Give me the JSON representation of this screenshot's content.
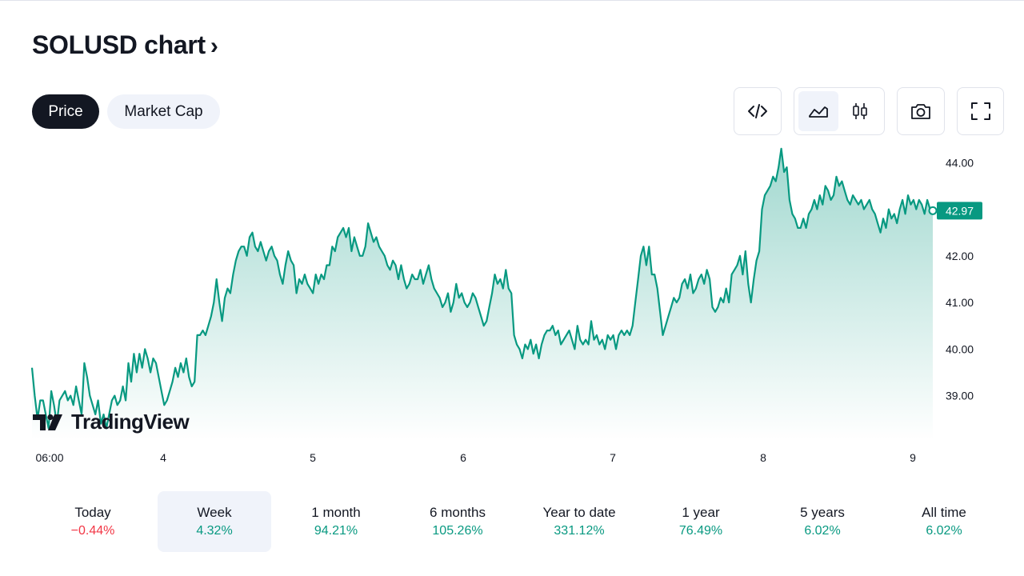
{
  "header": {
    "title": "SOLUSD chart",
    "chevron": "›"
  },
  "tabs": [
    {
      "label": "Price",
      "active": true
    },
    {
      "label": "Market Cap",
      "active": false
    }
  ],
  "toolbar": {
    "embed_icon": "code-icon",
    "area_icon": "area-chart-icon",
    "candle_icon": "candlestick-icon",
    "camera_icon": "camera-icon",
    "fullscreen_icon": "fullscreen-icon",
    "selected_style": "area"
  },
  "brand": {
    "logo_text": "TradingView"
  },
  "colors": {
    "line": "#089981",
    "fill_top": "#089981",
    "negative": "#f23645",
    "text": "#131722"
  },
  "chart_data": {
    "type": "area",
    "x_labels": [
      "06:00",
      "4",
      "5",
      "6",
      "7",
      "8",
      "9"
    ],
    "y_ticks": [
      "44.00",
      "42.00",
      "41.00",
      "40.00",
      "39.00"
    ],
    "y_tick_values": [
      44,
      42,
      41,
      40,
      39
    ],
    "ylim": [
      38.05,
      44.4
    ],
    "last_value": 42.97,
    "last_label": "42.97",
    "grid": false,
    "series": [
      {
        "values": [
          39.6,
          39.0,
          38.5,
          38.9,
          38.9,
          38.6,
          38.3,
          39.1,
          38.8,
          38.4,
          38.9,
          39.0,
          39.1,
          38.9,
          39.0,
          38.8,
          39.2,
          38.9,
          38.6,
          39.7,
          39.4,
          39.0,
          38.8,
          38.6,
          38.9,
          38.4,
          38.6,
          38.3,
          38.6,
          38.9,
          39.0,
          38.8,
          38.9,
          39.2,
          38.9,
          39.7,
          39.3,
          39.9,
          39.5,
          39.9,
          39.6,
          40.0,
          39.8,
          39.5,
          39.8,
          39.7,
          39.4,
          39.1,
          38.8,
          38.9,
          39.1,
          39.3,
          39.6,
          39.4,
          39.7,
          39.5,
          39.8,
          39.4,
          39.2,
          39.3,
          40.3,
          40.3,
          40.4,
          40.3,
          40.5,
          40.7,
          41.0,
          41.5,
          41.0,
          40.6,
          41.1,
          41.3,
          41.2,
          41.6,
          41.9,
          42.1,
          42.2,
          42.2,
          42.0,
          42.4,
          42.5,
          42.2,
          42.1,
          42.3,
          42.1,
          41.9,
          42.1,
          42.2,
          42.0,
          41.9,
          41.6,
          41.4,
          41.8,
          42.1,
          41.9,
          41.8,
          41.2,
          41.5,
          41.4,
          41.6,
          41.4,
          41.3,
          41.2,
          41.6,
          41.4,
          41.6,
          41.5,
          41.8,
          41.8,
          42.2,
          42.1,
          42.4,
          42.5,
          42.6,
          42.4,
          42.6,
          42.1,
          42.4,
          42.2,
          42.0,
          42.0,
          42.2,
          42.7,
          42.5,
          42.3,
          42.4,
          42.2,
          42.1,
          42.0,
          41.8,
          41.7,
          41.9,
          41.8,
          41.5,
          41.8,
          41.5,
          41.3,
          41.4,
          41.6,
          41.5,
          41.5,
          41.7,
          41.4,
          41.6,
          41.8,
          41.5,
          41.3,
          41.2,
          41.1,
          40.9,
          41.0,
          41.2,
          40.8,
          41.0,
          41.4,
          41.1,
          41.2,
          41.0,
          40.9,
          41.0,
          41.2,
          41.1,
          40.9,
          40.7,
          40.5,
          40.6,
          40.9,
          41.2,
          41.6,
          41.4,
          41.5,
          41.3,
          41.7,
          41.3,
          41.2,
          40.3,
          40.1,
          40.0,
          39.8,
          40.1,
          40.0,
          40.2,
          39.9,
          40.1,
          39.8,
          40.1,
          40.3,
          40.4,
          40.4,
          40.5,
          40.3,
          40.4,
          40.1,
          40.2,
          40.3,
          40.4,
          40.2,
          40.0,
          40.5,
          40.2,
          40.1,
          40.2,
          40.1,
          40.6,
          40.2,
          40.3,
          40.1,
          40.2,
          40.0,
          40.3,
          40.2,
          40.3,
          40.0,
          40.3,
          40.4,
          40.3,
          40.4,
          40.3,
          40.5,
          41.0,
          41.5,
          42.0,
          42.2,
          41.8,
          42.2,
          41.6,
          41.6,
          41.3,
          40.8,
          40.3,
          40.5,
          40.7,
          40.9,
          41.1,
          41.0,
          41.1,
          41.4,
          41.5,
          41.3,
          41.6,
          41.2,
          41.3,
          41.5,
          41.6,
          41.4,
          41.7,
          41.5,
          40.9,
          40.8,
          40.9,
          41.1,
          41.0,
          41.3,
          41.0,
          41.6,
          41.7,
          41.8,
          42.0,
          41.6,
          42.1,
          41.4,
          41.0,
          41.5,
          41.9,
          42.1,
          43.0,
          43.3,
          43.4,
          43.5,
          43.7,
          43.6,
          43.9,
          44.3,
          43.8,
          43.9,
          43.2,
          42.9,
          42.8,
          42.6,
          42.6,
          42.8,
          42.6,
          42.9,
          43.0,
          43.2,
          43.0,
          43.3,
          43.1,
          43.5,
          43.4,
          43.2,
          43.3,
          43.7,
          43.5,
          43.6,
          43.4,
          43.2,
          43.1,
          43.3,
          43.2,
          43.1,
          43.2,
          43.0,
          43.1,
          43.2,
          43.0,
          42.9,
          42.7,
          42.5,
          42.8,
          42.6,
          43.0,
          42.8,
          42.9,
          42.7,
          43.0,
          43.2,
          42.9,
          43.3,
          43.1,
          43.2,
          43.0,
          43.2,
          43.1,
          42.9,
          43.2,
          43.0,
          42.97
        ]
      }
    ]
  },
  "periods": [
    {
      "label": "Today",
      "value": "−0.44%",
      "sign": "neg",
      "selected": false
    },
    {
      "label": "Week",
      "value": "4.32%",
      "sign": "pos",
      "selected": true
    },
    {
      "label": "1 month",
      "value": "94.21%",
      "sign": "pos",
      "selected": false
    },
    {
      "label": "6 months",
      "value": "105.26%",
      "sign": "pos",
      "selected": false
    },
    {
      "label": "Year to date",
      "value": "331.12%",
      "sign": "pos",
      "selected": false
    },
    {
      "label": "1 year",
      "value": "76.49%",
      "sign": "pos",
      "selected": false
    },
    {
      "label": "5 years",
      "value": "6.02%",
      "sign": "pos",
      "selected": false
    },
    {
      "label": "All time",
      "value": "6.02%",
      "sign": "pos",
      "selected": false
    }
  ]
}
